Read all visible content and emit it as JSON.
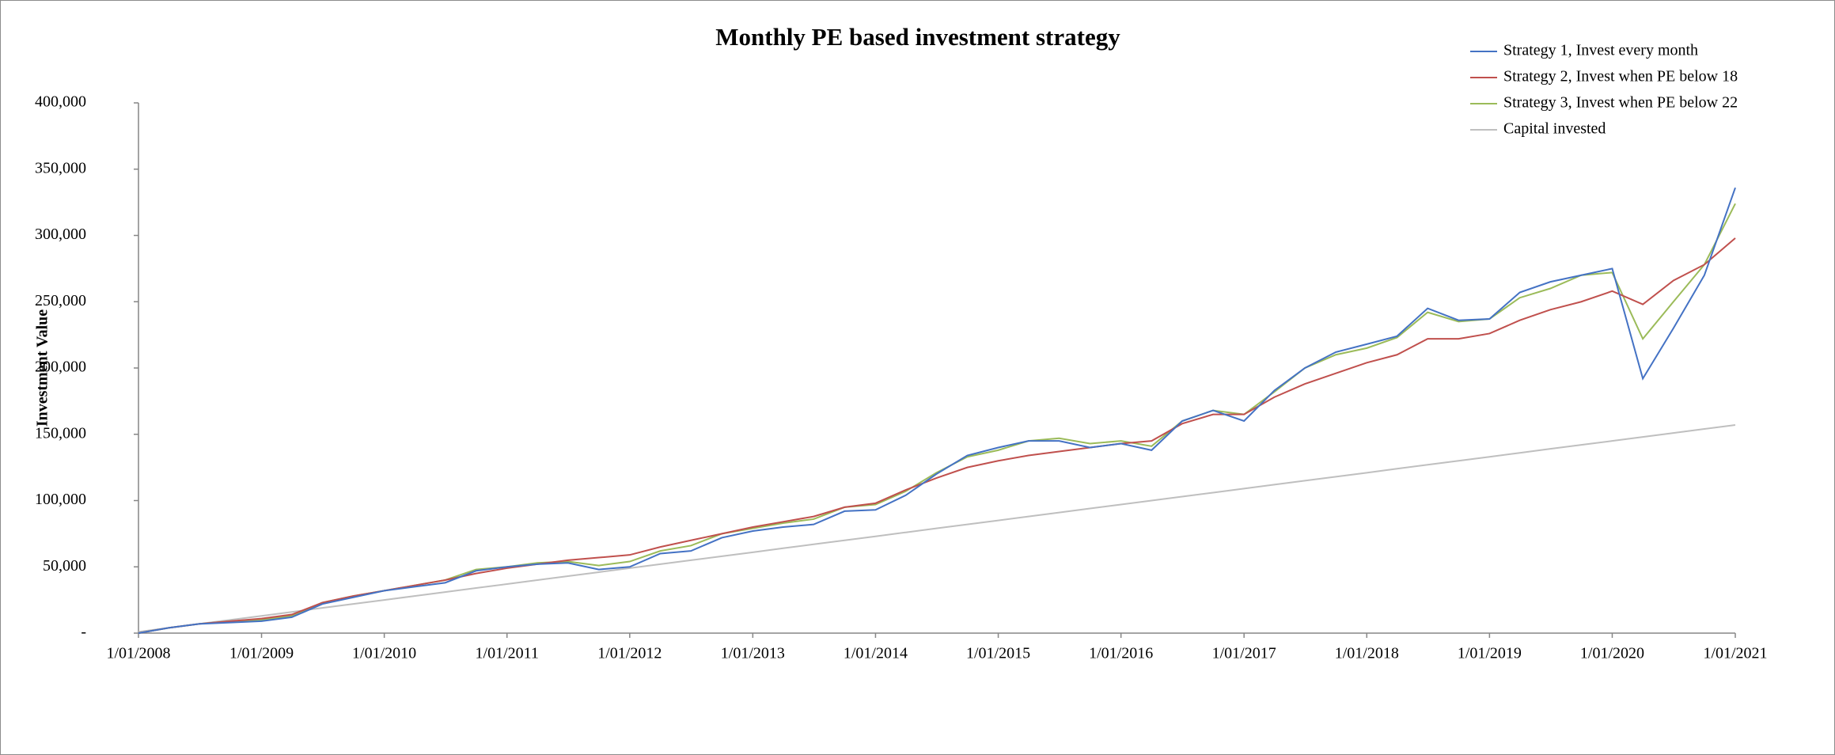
{
  "chart_data": {
    "type": "line",
    "title": "Monthly PE based investment strategy",
    "y_label": "Investment Value",
    "x": [
      "1/01/2008",
      "1/04/2008",
      "1/07/2008",
      "1/10/2008",
      "1/01/2009",
      "1/04/2009",
      "1/07/2009",
      "1/10/2009",
      "1/01/2010",
      "1/04/2010",
      "1/07/2010",
      "1/10/2010",
      "1/01/2011",
      "1/04/2011",
      "1/07/2011",
      "1/10/2011",
      "1/01/2012",
      "1/04/2012",
      "1/07/2012",
      "1/10/2012",
      "1/01/2013",
      "1/04/2013",
      "1/07/2013",
      "1/10/2013",
      "1/01/2014",
      "1/04/2014",
      "1/07/2014",
      "1/10/2014",
      "1/01/2015",
      "1/04/2015",
      "1/07/2015",
      "1/10/2015",
      "1/01/2016",
      "1/04/2016",
      "1/07/2016",
      "1/10/2016",
      "1/01/2017",
      "1/04/2017",
      "1/07/2017",
      "1/10/2017",
      "1/01/2018",
      "1/04/2018",
      "1/07/2018",
      "1/10/2018",
      "1/01/2019",
      "1/04/2019",
      "1/07/2019",
      "1/10/2019",
      "1/01/2020",
      "1/04/2020",
      "1/07/2020",
      "1/10/2020",
      "1/01/2021"
    ],
    "series": [
      {
        "name": "Strategy 1, Invest every month",
        "color": "#4472c4",
        "values": [
          0,
          4000,
          7000,
          8000,
          9000,
          12000,
          22000,
          27000,
          32000,
          35000,
          38000,
          47000,
          50000,
          52000,
          53000,
          48000,
          50000,
          60000,
          62000,
          72000,
          77000,
          80000,
          82000,
          92000,
          93000,
          104000,
          120000,
          134000,
          140000,
          145000,
          145000,
          140000,
          143000,
          138000,
          160000,
          168000,
          160000,
          183000,
          200000,
          212000,
          218000,
          224000,
          245000,
          236000,
          237000,
          257000,
          265000,
          270000,
          275000,
          192000,
          230000,
          270000,
          336000
        ]
      },
      {
        "name": "Strategy 2, Invest when PE below 18",
        "color": "#c0504d",
        "values": [
          0,
          4000,
          7000,
          9000,
          11000,
          14000,
          23000,
          28000,
          32000,
          36000,
          40000,
          45000,
          49000,
          52000,
          55000,
          57000,
          59000,
          65000,
          70000,
          75000,
          80000,
          84000,
          88000,
          95000,
          98000,
          108000,
          117000,
          125000,
          130000,
          134000,
          137000,
          140000,
          143000,
          145000,
          158000,
          165000,
          165000,
          178000,
          188000,
          196000,
          204000,
          210000,
          222000,
          222000,
          226000,
          236000,
          244000,
          250000,
          258000,
          248000,
          266000,
          278000,
          298000
        ]
      },
      {
        "name": "Strategy 3, Invest when PE below 22",
        "color": "#9bbb59",
        "values": [
          0,
          4000,
          7000,
          9000,
          10000,
          13000,
          23000,
          28000,
          32000,
          36000,
          40000,
          48000,
          50000,
          53000,
          54000,
          51000,
          54000,
          62000,
          66000,
          75000,
          79000,
          83000,
          86000,
          95000,
          97000,
          107000,
          121000,
          133000,
          138000,
          145000,
          147000,
          143000,
          145000,
          141000,
          160000,
          168000,
          165000,
          182000,
          200000,
          210000,
          215000,
          223000,
          242000,
          235000,
          237000,
          253000,
          260000,
          270000,
          272000,
          222000,
          250000,
          278000,
          324000
        ]
      },
      {
        "name": "Capital invested",
        "color": "#bfbfbf",
        "values": [
          1000,
          4000,
          7000,
          10000,
          13000,
          16000,
          19000,
          22000,
          25000,
          28000,
          31000,
          34000,
          37000,
          40000,
          43000,
          46000,
          49000,
          52000,
          55000,
          58000,
          61000,
          64000,
          67000,
          70000,
          73000,
          76000,
          79000,
          82000,
          85000,
          88000,
          91000,
          94000,
          97000,
          100000,
          103000,
          106000,
          109000,
          112000,
          115000,
          118000,
          121000,
          124000,
          127000,
          130000,
          133000,
          136000,
          139000,
          142000,
          145000,
          148000,
          151000,
          154000,
          157000
        ]
      }
    ],
    "xlim": [
      "1/01/2008",
      "1/01/2021"
    ],
    "xticks": [
      "1/01/2008",
      "1/01/2009",
      "1/01/2010",
      "1/01/2011",
      "1/01/2012",
      "1/01/2013",
      "1/01/2014",
      "1/01/2015",
      "1/01/2016",
      "1/01/2017",
      "1/01/2018",
      "1/01/2019",
      "1/01/2020",
      "1/01/2021"
    ],
    "ylim": [
      0,
      400000
    ],
    "yticks": [
      {
        "value": 0,
        "label": "-"
      },
      {
        "value": 50000,
        "label": "50,000"
      },
      {
        "value": 100000,
        "label": "100,000"
      },
      {
        "value": 150000,
        "label": "150,000"
      },
      {
        "value": 200000,
        "label": "200,000"
      },
      {
        "value": 250000,
        "label": "250,000"
      },
      {
        "value": 300000,
        "label": "300,000"
      },
      {
        "value": 350000,
        "label": "350,000"
      },
      {
        "value": 400000,
        "label": "400,000"
      }
    ],
    "grid": false,
    "legend": "top-right"
  }
}
